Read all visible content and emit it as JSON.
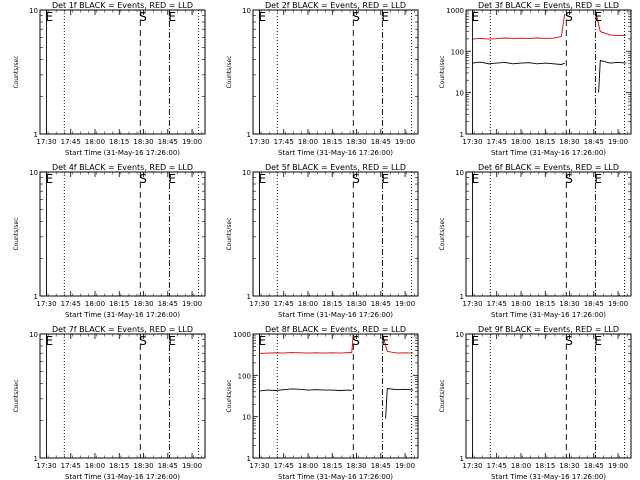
{
  "figure": {
    "xlabel": "Start Time (31-May-16 17:26:00)",
    "ylabel": "Counts/sec",
    "x_tick_labels": [
      "17:30",
      "17:45",
      "18:00",
      "18:15",
      "18:30",
      "18:45",
      "19:00"
    ],
    "y_tick_labels_small": [
      "1",
      "10"
    ],
    "y_tick_labels_big": [
      "1",
      "10",
      "100",
      "1000"
    ],
    "colors": {
      "events": "#000000",
      "lld": "#e00000",
      "marker": "#000000"
    }
  },
  "chart_data": [
    {
      "type": "line",
      "title": "Det 1f BLACK = Events, RED = LLD",
      "xlim": [
        "17:26",
        "19:08"
      ],
      "ylim": [
        1,
        10
      ],
      "yscale": "log",
      "markers": [
        {
          "label": "E",
          "time": "17:30",
          "style": "solid"
        },
        {
          "label": "",
          "time": "17:41",
          "style": "dotted"
        },
        {
          "label": "S",
          "time": "18:28",
          "style": "dashed"
        },
        {
          "label": "E",
          "time": "18:46",
          "style": "dashdot"
        },
        {
          "label": "",
          "time": "19:04",
          "style": "dotted"
        }
      ],
      "series": []
    },
    {
      "type": "line",
      "title": "Det 2f BLACK = Events, RED = LLD",
      "xlim": [
        "17:26",
        "19:08"
      ],
      "ylim": [
        1,
        10
      ],
      "yscale": "log",
      "markers": [
        {
          "label": "E",
          "time": "17:30",
          "style": "solid"
        },
        {
          "label": "",
          "time": "17:41",
          "style": "dotted"
        },
        {
          "label": "S",
          "time": "18:28",
          "style": "dashed"
        },
        {
          "label": "E",
          "time": "18:46",
          "style": "dashdot"
        },
        {
          "label": "",
          "time": "19:04",
          "style": "dotted"
        }
      ],
      "series": []
    },
    {
      "type": "line",
      "title": "Det 3f BLACK = Events, RED = LLD",
      "xlim": [
        "17:26",
        "19:08"
      ],
      "ylim": [
        1,
        1000
      ],
      "yscale": "log",
      "markers": [
        {
          "label": "E",
          "time": "17:30",
          "style": "solid"
        },
        {
          "label": "",
          "time": "17:41",
          "style": "dotted"
        },
        {
          "label": "S",
          "time": "18:28",
          "style": "dashed"
        },
        {
          "label": "E",
          "time": "18:46",
          "style": "dashdot"
        },
        {
          "label": "",
          "time": "19:04",
          "style": "dotted"
        }
      ],
      "series": [
        {
          "color": "#e00000",
          "points": [
            [
              "17:30",
              200
            ],
            [
              "17:35",
              205
            ],
            [
              "17:40",
              198
            ],
            [
              "17:45",
              202
            ],
            [
              "17:50",
              210
            ],
            [
              "17:55",
              205
            ],
            [
              "18:00",
              208
            ],
            [
              "18:05",
              205
            ],
            [
              "18:10",
              210
            ],
            [
              "18:15",
              205
            ],
            [
              "18:20",
              208
            ],
            [
              "18:25",
              230
            ],
            [
              "18:27",
              800
            ]
          ]
        },
        {
          "color": "#e00000",
          "points": [
            [
              "18:46",
              1000
            ],
            [
              "18:49",
              300
            ],
            [
              "18:55",
              250
            ],
            [
              "19:00",
              240
            ],
            [
              "19:05",
              245
            ]
          ]
        },
        {
          "color": "#000000",
          "points": [
            [
              "17:30",
              52
            ],
            [
              "17:35",
              55
            ],
            [
              "17:40",
              50
            ],
            [
              "17:45",
              52
            ],
            [
              "17:50",
              54
            ],
            [
              "17:55",
              50
            ],
            [
              "18:00",
              52
            ],
            [
              "18:05",
              53
            ],
            [
              "18:10",
              50
            ],
            [
              "18:15",
              52
            ],
            [
              "18:20",
              50
            ],
            [
              "18:25",
              48
            ],
            [
              "18:27",
              52
            ]
          ]
        },
        {
          "color": "#000000",
          "points": [
            [
              "18:48",
              10
            ],
            [
              "18:49",
              60
            ],
            [
              "18:55",
              52
            ],
            [
              "19:00",
              54
            ],
            [
              "19:05",
              52
            ]
          ]
        }
      ]
    },
    {
      "type": "line",
      "title": "Det 4f BLACK = Events, RED = LLD",
      "xlim": [
        "17:26",
        "19:08"
      ],
      "ylim": [
        1,
        10
      ],
      "yscale": "log",
      "markers": [
        {
          "label": "E",
          "time": "17:30",
          "style": "solid"
        },
        {
          "label": "",
          "time": "17:41",
          "style": "dotted"
        },
        {
          "label": "S",
          "time": "18:28",
          "style": "dashed"
        },
        {
          "label": "E",
          "time": "18:46",
          "style": "dashdot"
        },
        {
          "label": "",
          "time": "19:04",
          "style": "dotted"
        }
      ],
      "series": []
    },
    {
      "type": "line",
      "title": "Det 5f BLACK = Events, RED = LLD",
      "xlim": [
        "17:26",
        "19:08"
      ],
      "ylim": [
        1,
        10
      ],
      "yscale": "log",
      "markers": [
        {
          "label": "E",
          "time": "17:30",
          "style": "solid"
        },
        {
          "label": "",
          "time": "17:41",
          "style": "dotted"
        },
        {
          "label": "S",
          "time": "18:28",
          "style": "dashed"
        },
        {
          "label": "E",
          "time": "18:46",
          "style": "dashdot"
        },
        {
          "label": "",
          "time": "19:04",
          "style": "dotted"
        }
      ],
      "series": []
    },
    {
      "type": "line",
      "title": "Det 6f BLACK = Events, RED = LLD",
      "xlim": [
        "17:26",
        "19:08"
      ],
      "ylim": [
        1,
        10
      ],
      "yscale": "log",
      "markers": [
        {
          "label": "E",
          "time": "17:30",
          "style": "solid"
        },
        {
          "label": "",
          "time": "17:41",
          "style": "dotted"
        },
        {
          "label": "S",
          "time": "18:28",
          "style": "dashed"
        },
        {
          "label": "E",
          "time": "18:46",
          "style": "dashdot"
        },
        {
          "label": "",
          "time": "19:04",
          "style": "dotted"
        }
      ],
      "series": []
    },
    {
      "type": "line",
      "title": "Det 7f BLACK = Events, RED = LLD",
      "xlim": [
        "17:26",
        "19:08"
      ],
      "ylim": [
        1,
        10
      ],
      "yscale": "log",
      "markers": [
        {
          "label": "E",
          "time": "17:30",
          "style": "solid"
        },
        {
          "label": "",
          "time": "17:41",
          "style": "dotted"
        },
        {
          "label": "S",
          "time": "18:28",
          "style": "dashed"
        },
        {
          "label": "E",
          "time": "18:46",
          "style": "dashdot"
        },
        {
          "label": "",
          "time": "19:04",
          "style": "dotted"
        }
      ],
      "series": []
    },
    {
      "type": "line",
      "title": "Det 8f BLACK = Events, RED = LLD",
      "xlim": [
        "17:26",
        "19:08"
      ],
      "ylim": [
        1,
        1000
      ],
      "yscale": "log",
      "markers": [
        {
          "label": "E",
          "time": "17:30",
          "style": "solid"
        },
        {
          "label": "",
          "time": "17:41",
          "style": "dotted"
        },
        {
          "label": "S",
          "time": "18:28",
          "style": "dashed"
        },
        {
          "label": "E",
          "time": "18:46",
          "style": "dashdot"
        },
        {
          "label": "",
          "time": "19:04",
          "style": "dotted"
        }
      ],
      "series": [
        {
          "color": "#e00000",
          "points": [
            [
              "17:30",
              340
            ],
            [
              "17:35",
              345
            ],
            [
              "17:40",
              350
            ],
            [
              "17:45",
              345
            ],
            [
              "17:50",
              355
            ],
            [
              "17:55",
              350
            ],
            [
              "18:00",
              345
            ],
            [
              "18:05",
              350
            ],
            [
              "18:10",
              345
            ],
            [
              "18:15",
              350
            ],
            [
              "18:20",
              345
            ],
            [
              "18:25",
              355
            ],
            [
              "18:27",
              350
            ],
            [
              "18:28",
              1000
            ]
          ]
        },
        {
          "color": "#e00000",
          "points": [
            [
              "18:46",
              1000
            ],
            [
              "18:49",
              380
            ],
            [
              "18:55",
              345
            ],
            [
              "19:00",
              350
            ],
            [
              "19:05",
              345
            ]
          ]
        },
        {
          "color": "#000000",
          "points": [
            [
              "17:30",
              42
            ],
            [
              "17:35",
              44
            ],
            [
              "17:40",
              43
            ],
            [
              "17:45",
              45
            ],
            [
              "17:50",
              47
            ],
            [
              "17:55",
              46
            ],
            [
              "18:00",
              44
            ],
            [
              "18:05",
              45
            ],
            [
              "18:10",
              44
            ],
            [
              "18:15",
              44
            ],
            [
              "18:20",
              43
            ],
            [
              "18:25",
              44
            ],
            [
              "18:27",
              43
            ]
          ]
        },
        {
          "color": "#000000",
          "points": [
            [
              "18:48",
              9
            ],
            [
              "18:49",
              48
            ],
            [
              "18:55",
              45
            ],
            [
              "19:00",
              46
            ],
            [
              "19:05",
              44
            ]
          ]
        }
      ]
    },
    {
      "type": "line",
      "title": "Det 9f BLACK = Events, RED = LLD",
      "xlim": [
        "17:26",
        "19:08"
      ],
      "ylim": [
        1,
        10
      ],
      "yscale": "log",
      "markers": [
        {
          "label": "E",
          "time": "17:30",
          "style": "solid"
        },
        {
          "label": "",
          "time": "17:41",
          "style": "dotted"
        },
        {
          "label": "S",
          "time": "18:28",
          "style": "dashed"
        },
        {
          "label": "E",
          "time": "18:46",
          "style": "dashdot"
        },
        {
          "label": "",
          "time": "19:04",
          "style": "dotted"
        }
      ],
      "series": []
    }
  ]
}
